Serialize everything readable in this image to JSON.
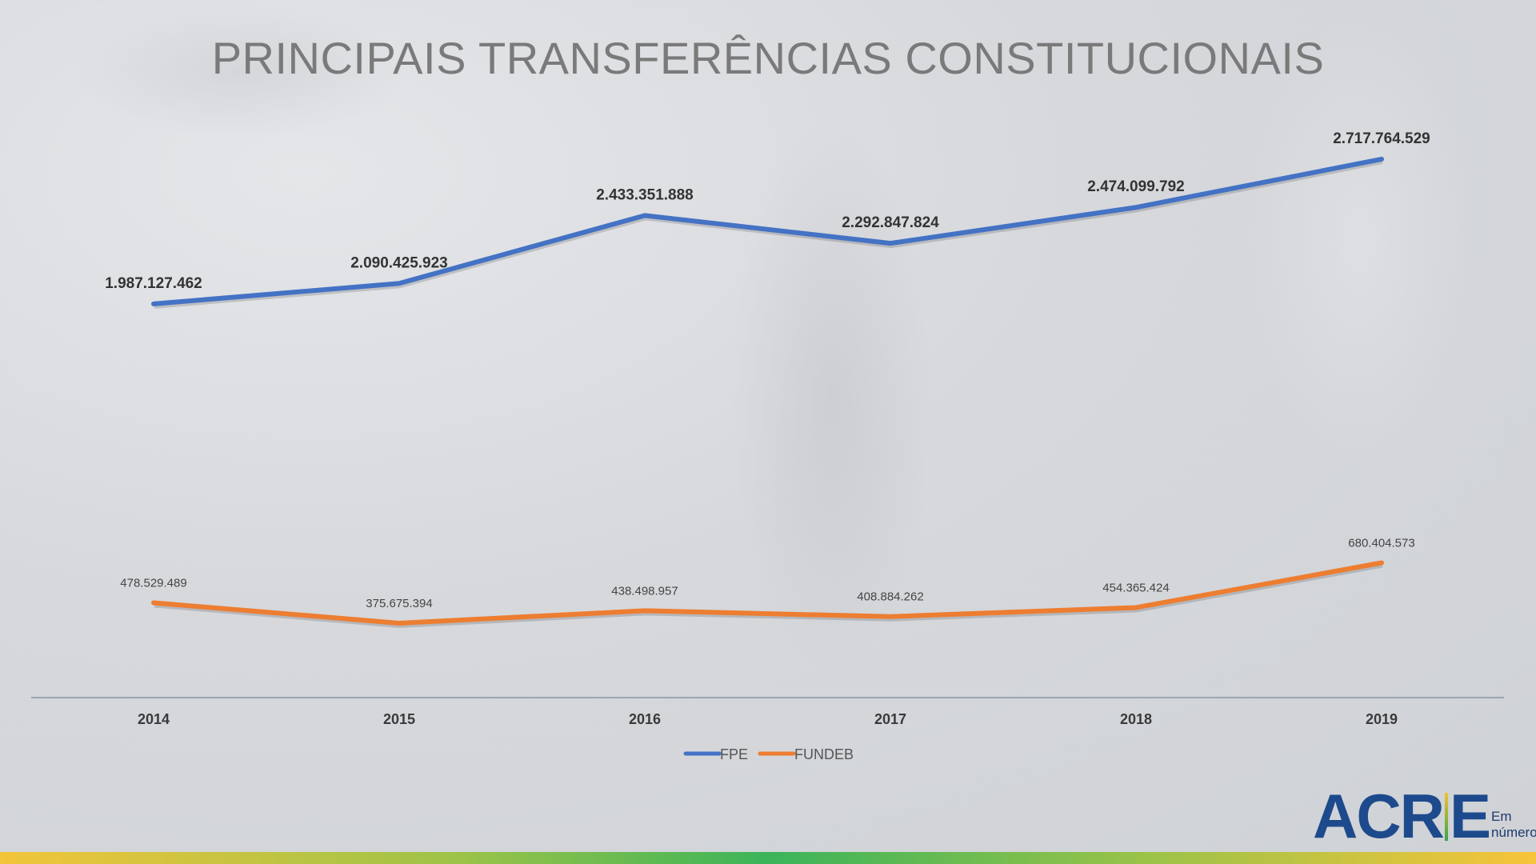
{
  "chart_data": {
    "type": "line",
    "title": "PRINCIPAIS TRANSFERÊNCIAS CONSTITUCIONAIS",
    "xlabel": "",
    "ylabel": "",
    "categories": [
      "2014",
      "2015",
      "2016",
      "2017",
      "2018",
      "2019"
    ],
    "series": [
      {
        "name": "FPE",
        "color": "#4472c4",
        "values": [
          1987127462,
          2090425923,
          2433351888,
          2292847824,
          2474099792,
          2717764529
        ],
        "labels": [
          "1.987.127.462",
          "2.090.425.923",
          "2.433.351.888",
          "2.292.847.824",
          "2.474.099.792",
          "2.717.764.529"
        ]
      },
      {
        "name": "FUNDEB",
        "color": "#ed7d31",
        "values": [
          478529489,
          375675394,
          438498957,
          408884262,
          454365424,
          680404573
        ],
        "labels": [
          "478.529.489",
          "375.675.394",
          "438.498.957",
          "408.884.262",
          "454.365.424",
          "680.404.573"
        ]
      }
    ],
    "ylim": [
      0,
      3000000000
    ],
    "grid": false,
    "legend": "bottom"
  },
  "logo": {
    "text": "ACRE",
    "sub1": "Em",
    "sub2": "números"
  }
}
